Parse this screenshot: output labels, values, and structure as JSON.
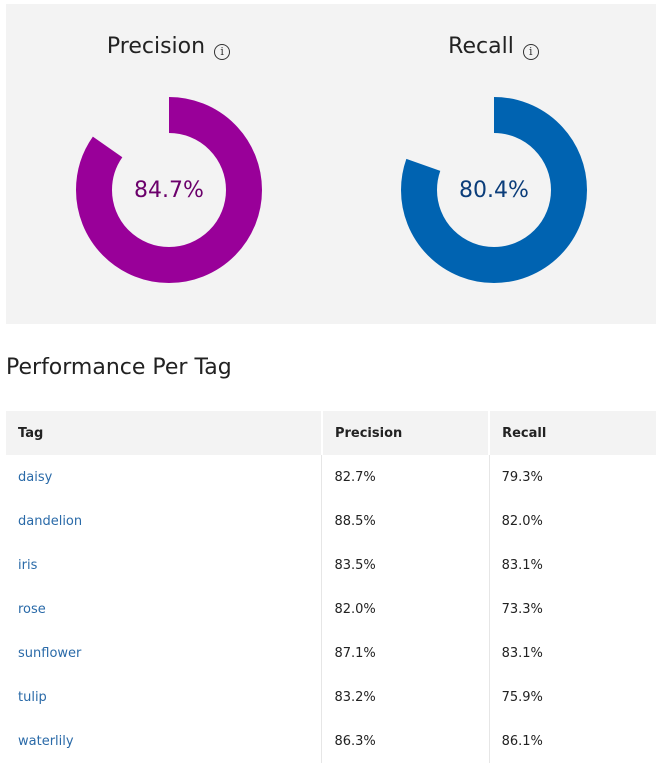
{
  "summary": {
    "precision": {
      "label": "Precision",
      "info_icon": "info-icon",
      "value_text": "84.7%",
      "value": 84.7,
      "ring_color": "#990099",
      "text_color": "#6b006b"
    },
    "recall": {
      "label": "Recall",
      "info_icon": "info-icon",
      "value_text": "80.4%",
      "value": 80.4,
      "ring_color": "#0063b1",
      "text_color": "#0b3d7a"
    }
  },
  "section_title": "Performance Per Tag",
  "table": {
    "headers": [
      "Tag",
      "Precision",
      "Recall"
    ],
    "rows": [
      {
        "tag": "daisy",
        "precision": "82.7%",
        "recall": "79.3%"
      },
      {
        "tag": "dandelion",
        "precision": "88.5%",
        "recall": "82.0%"
      },
      {
        "tag": "iris",
        "precision": "83.5%",
        "recall": "83.1%"
      },
      {
        "tag": "rose",
        "precision": "82.0%",
        "recall": "73.3%"
      },
      {
        "tag": "sunflower",
        "precision": "87.1%",
        "recall": "83.1%"
      },
      {
        "tag": "tulip",
        "precision": "83.2%",
        "recall": "75.9%"
      },
      {
        "tag": "waterlily",
        "precision": "86.3%",
        "recall": "86.1%"
      }
    ]
  }
}
